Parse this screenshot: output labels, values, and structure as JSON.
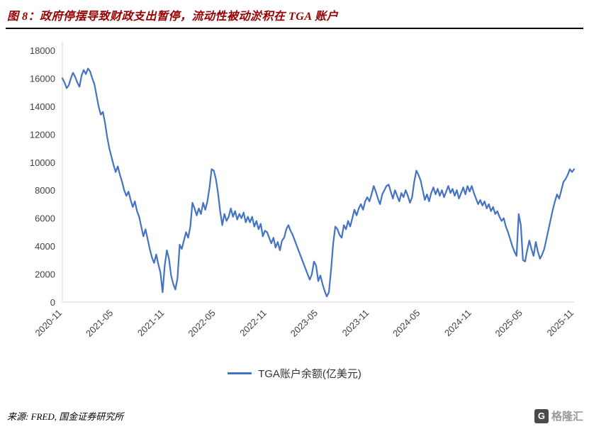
{
  "header": {
    "title": "图 8：政府停摆导致财政支出暂停，流动性被动淤积在 TGA 账户"
  },
  "legend": {
    "label": "TGA账户余额(亿美元)"
  },
  "footer": {
    "source": "来源: FRED, 国金证券研究所",
    "logo_letter": "G",
    "logo_text": "格隆汇"
  },
  "chart_data": {
    "type": "line",
    "title": "",
    "xlabel": "",
    "ylabel": "",
    "series_name": "TGA账户余额(亿美元)",
    "line_color": "#4472C4",
    "grid": false,
    "legend_position": "bottom",
    "ylim": [
      0,
      18000
    ],
    "ytick_step": 2000,
    "x_start": "2020-11",
    "x_end": "2025-11",
    "x_tick_labels": [
      "2020-11",
      "2021-05",
      "2021-11",
      "2022-05",
      "2022-11",
      "2023-05",
      "2023-11",
      "2024-05",
      "2024-11",
      "2025-05",
      "2025-11"
    ],
    "x_tick_every": 24,
    "points_per_month": 4,
    "values": [
      16000,
      15700,
      15300,
      15500,
      16000,
      16400,
      16100,
      15700,
      15400,
      16200,
      16600,
      16300,
      16700,
      16500,
      16000,
      15600,
      14800,
      14000,
      13400,
      13600,
      12800,
      11800,
      11000,
      10400,
      9800,
      9300,
      9700,
      9100,
      8600,
      8000,
      7600,
      7900,
      7300,
      6800,
      7200,
      6500,
      6100,
      5400,
      4700,
      5200,
      4500,
      3800,
      3200,
      2800,
      3400,
      2700,
      2100,
      700,
      2600,
      3700,
      3100,
      1900,
      1300,
      900,
      1700,
      4100,
      3800,
      4400,
      5000,
      4600,
      5400,
      7100,
      6700,
      6200,
      6700,
      6300,
      7100,
      6600,
      7200,
      8200,
      9500,
      9400,
      8800,
      7800,
      6500,
      5500,
      6300,
      5800,
      6100,
      6700,
      6100,
      6500,
      5900,
      6300,
      6000,
      6400,
      5700,
      6100,
      5700,
      6100,
      5400,
      5800,
      5200,
      5600,
      4700,
      5100,
      5000,
      4600,
      4200,
      4600,
      3900,
      4300,
      3700,
      4400,
      4600,
      5200,
      5500,
      5100,
      4800,
      4400,
      4000,
      3600,
      3200,
      2800,
      2400,
      2000,
      1600,
      2000,
      2900,
      2600,
      1500,
      1900,
      1300,
      800,
      400,
      700,
      2300,
      4200,
      5400,
      5200,
      4800,
      4600,
      5500,
      5200,
      5800,
      5400,
      6000,
      6600,
      6200,
      6700,
      7000,
      6600,
      7200,
      7500,
      7200,
      7700,
      8300,
      7900,
      7400,
      7000,
      7700,
      8000,
      8300,
      8400,
      7900,
      7400,
      8000,
      7600,
      7200,
      7800,
      7500,
      8000,
      7600,
      7100,
      7500,
      8600,
      9400,
      9100,
      8700,
      8000,
      7300,
      7700,
      7200,
      7800,
      8200,
      7700,
      8100,
      7600,
      8000,
      7500,
      7900,
      8300,
      7800,
      8100,
      7600,
      8000,
      7400,
      7800,
      8200,
      7700,
      8300,
      7900,
      8300,
      7800,
      7400,
      7000,
      7300,
      6900,
      7200,
      6700,
      7000,
      6500,
      6800,
      6300,
      6500,
      6100,
      5800,
      6000,
      5400,
      5000,
      4500,
      4000,
      3600,
      3300,
      6300,
      5500,
      3000,
      2900,
      3700,
      4400,
      3800,
      3300,
      4300,
      3600,
      3100,
      3400,
      3800,
      4500,
      5200,
      5900,
      6600,
      7200,
      7700,
      7400,
      8000,
      8600,
      8800,
      9100,
      9500,
      9300,
      9500
    ]
  }
}
